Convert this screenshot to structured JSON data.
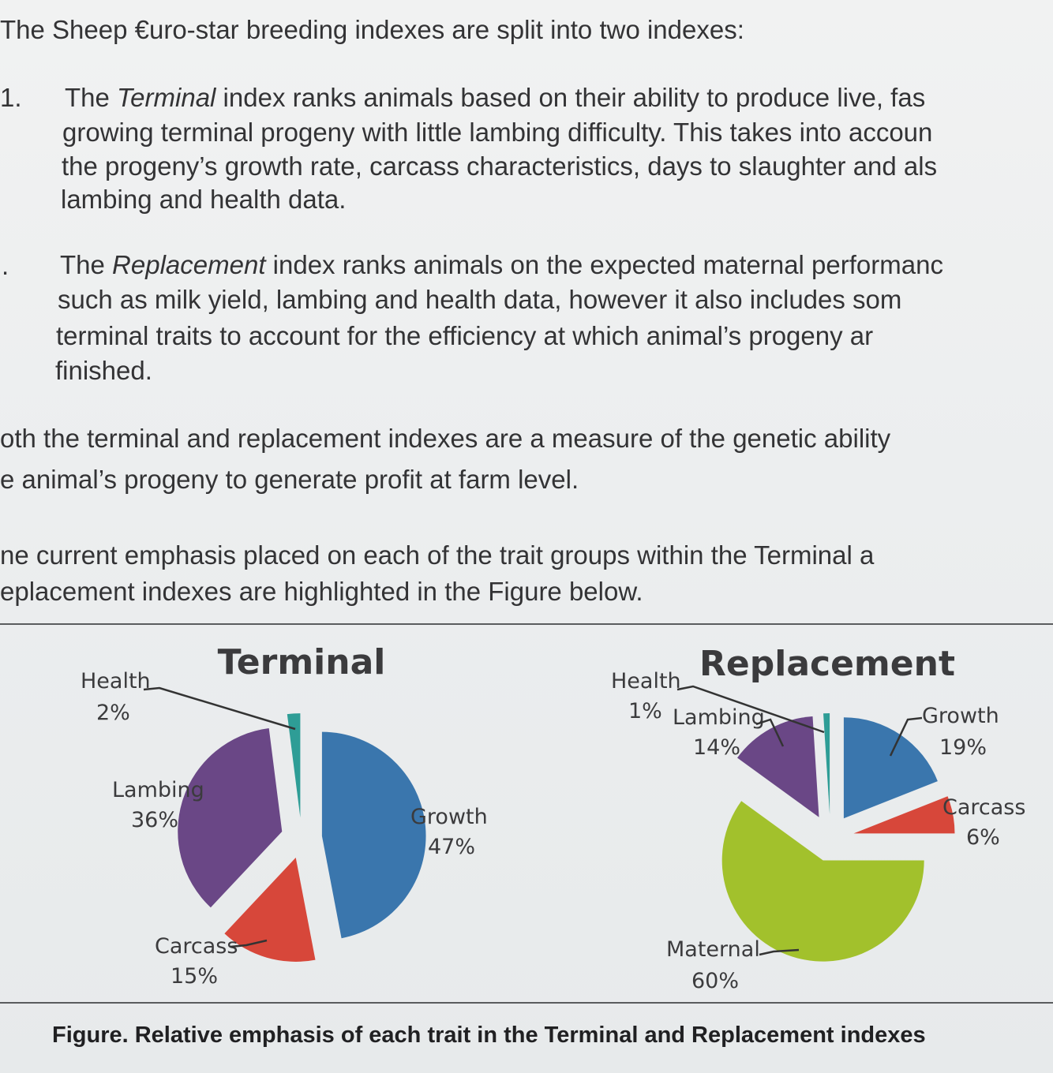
{
  "intro": "The Sheep €uro-star breeding indexes are split into two indexes:",
  "list": [
    {
      "marker": "1.",
      "lines": [
        [
          "The ",
          "Terminal",
          " index ranks animals based on their ability to produce live, fas"
        ],
        [
          "growing terminal progeny with little lambing difficulty.  This takes into accoun"
        ],
        [
          "the progeny’s growth rate, carcass characteristics, days to slaughter and als"
        ],
        [
          "lambing and health data."
        ]
      ]
    },
    {
      "marker": ".",
      "lines": [
        [
          "The ",
          "Replacement",
          " index ranks animals on the expected maternal performanc"
        ],
        [
          "such as milk yield, lambing and health data, however it also includes som"
        ],
        [
          "terminal traits to account for the efficiency at which animal’s progeny ar"
        ],
        [
          "finished."
        ]
      ]
    }
  ],
  "paragraph2": [
    "oth the terminal and replacement indexes are a measure of the genetic ability",
    "e animal’s progeny to generate profit at farm level."
  ],
  "paragraph3": [
    "ne current emphasis placed on each of the trait groups within the Terminal a",
    "eplacement indexes are highlighted in the Figure below."
  ],
  "chart_data": [
    {
      "type": "pie",
      "title": "Terminal",
      "slices": [
        {
          "label": "Growth",
          "value": 47,
          "display": "47%",
          "color": "#3a76ad"
        },
        {
          "label": "Carcass",
          "value": 15,
          "display": "15%",
          "color": "#d7473a"
        },
        {
          "label": "Lambing",
          "value": 36,
          "display": "36%",
          "color": "#6a4786"
        },
        {
          "label": "Health",
          "value": 2,
          "display": "2%",
          "color": "#2e9d96"
        }
      ]
    },
    {
      "type": "pie",
      "title": "Replacement",
      "slices": [
        {
          "label": "Growth",
          "value": 19,
          "display": "19%",
          "color": "#3a76ad"
        },
        {
          "label": "Carcass",
          "value": 6,
          "display": "6%",
          "color": "#d7473a"
        },
        {
          "label": "Maternal",
          "value": 60,
          "display": "60%",
          "color": "#a2c12c"
        },
        {
          "label": "Lambing",
          "value": 14,
          "display": "14%",
          "color": "#6a4786"
        },
        {
          "label": "Health",
          "value": 1,
          "display": "1%",
          "color": "#2e9d96"
        }
      ]
    }
  ],
  "caption": "Figure. Relative emphasis of each trait in the Terminal and Replacement indexes"
}
